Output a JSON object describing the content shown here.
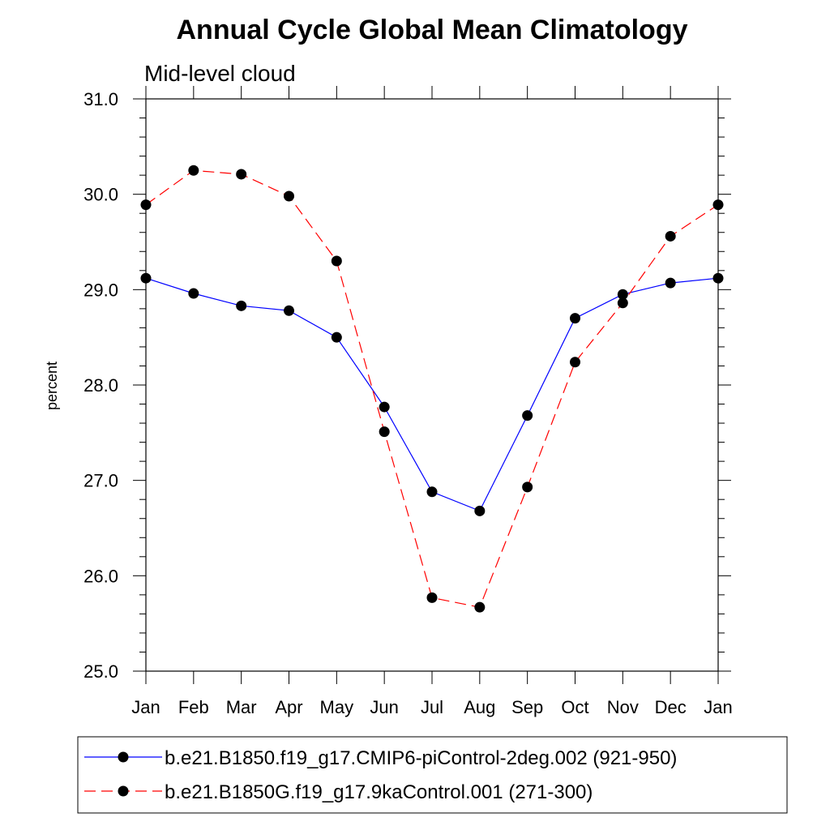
{
  "chart_data": {
    "type": "line",
    "title": "Annual Cycle Global Mean Climatology",
    "subtitle": "Mid-level cloud",
    "xlabel": "",
    "ylabel": "percent",
    "categories": [
      "Jan",
      "Feb",
      "Mar",
      "Apr",
      "May",
      "Jun",
      "Jul",
      "Aug",
      "Sep",
      "Oct",
      "Nov",
      "Dec",
      "Jan"
    ],
    "ylim": [
      25.0,
      31.0
    ],
    "yticks": [
      "25.0",
      "26.0",
      "27.0",
      "28.0",
      "29.0",
      "30.0",
      "31.0"
    ],
    "grid": false,
    "legend_position": "bottom",
    "series": [
      {
        "name": "b.e21.B1850.f19_g17.CMIP6-piControl-2deg.002 (921-950)",
        "color": "#0000ff",
        "line_style": "solid",
        "marker": "filled-circle",
        "values": [
          29.12,
          28.96,
          28.83,
          28.78,
          28.5,
          27.77,
          26.88,
          26.68,
          27.68,
          28.7,
          28.95,
          29.07,
          29.12
        ]
      },
      {
        "name": "b.e21.B1850G.f19_g17.9kaControl.001 (271-300)",
        "color": "#ff0000",
        "line_style": "dashed",
        "marker": "filled-circle",
        "values": [
          29.89,
          30.25,
          30.21,
          29.98,
          29.3,
          27.51,
          25.77,
          25.67,
          26.93,
          28.24,
          28.86,
          29.56,
          29.89
        ]
      }
    ]
  }
}
